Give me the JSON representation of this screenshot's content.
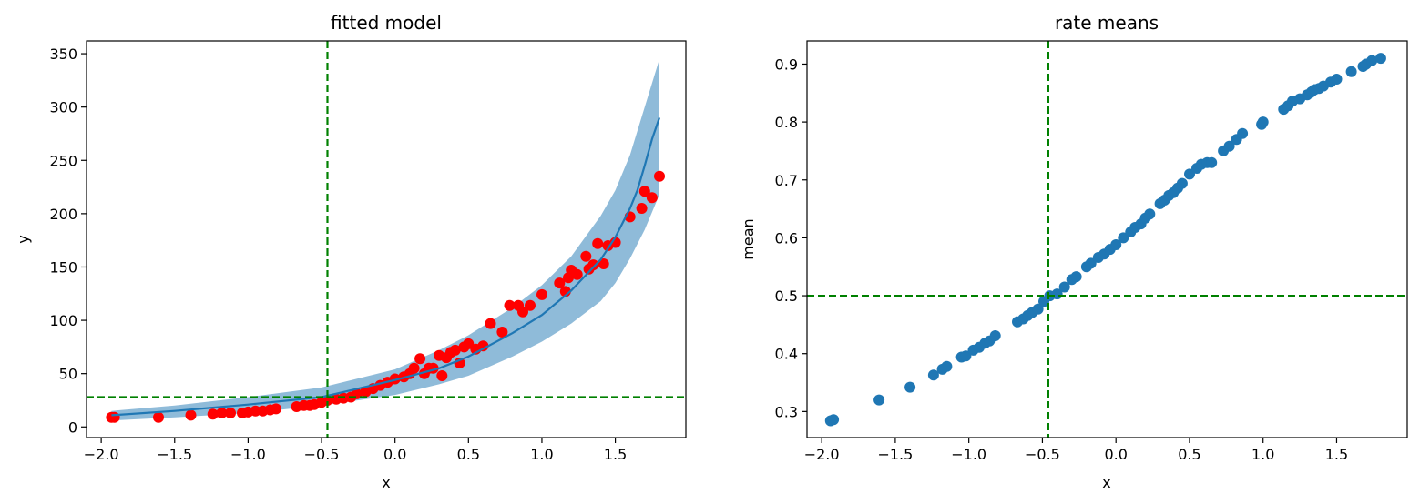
{
  "chart_data": [
    {
      "type": "scatter",
      "title": "fitted model",
      "xlabel": "x",
      "ylabel": "y",
      "xlim": [
        -2.1,
        1.98
      ],
      "ylim": [
        -10,
        362
      ],
      "xticks": [
        -2.0,
        -1.5,
        -1.0,
        -0.5,
        0.0,
        0.5,
        1.0,
        1.5
      ],
      "xtick_labels": [
        "−2.0",
        "−1.5",
        "−1.0",
        "−0.5",
        "0.0",
        "0.5",
        "1.0",
        "1.5"
      ],
      "yticks": [
        0,
        50,
        100,
        150,
        200,
        250,
        300,
        350
      ],
      "ytick_labels": [
        "0",
        "50",
        "100",
        "150",
        "200",
        "250",
        "300",
        "350"
      ],
      "grid": false,
      "observed": {
        "color": "#ff0000",
        "x": [
          -1.93,
          -1.91,
          -1.61,
          -1.39,
          -1.24,
          -1.18,
          -1.12,
          -1.04,
          -1.0,
          -0.95,
          -0.9,
          -0.85,
          -0.81,
          -0.67,
          -0.62,
          -0.58,
          -0.55,
          -0.5,
          -0.46,
          -0.4,
          -0.35,
          -0.3,
          -0.26,
          -0.2,
          -0.15,
          -0.1,
          -0.05,
          0.0,
          0.06,
          0.1,
          0.13,
          0.17,
          0.2,
          0.23,
          0.26,
          0.3,
          0.32,
          0.35,
          0.38,
          0.41,
          0.44,
          0.47,
          0.5,
          0.55,
          0.6,
          0.65,
          0.73,
          0.78,
          0.84,
          0.87,
          0.92,
          1.0,
          1.12,
          1.16,
          1.18,
          1.2,
          1.24,
          1.3,
          1.32,
          1.35,
          1.38,
          1.42,
          1.45,
          1.5,
          1.6,
          1.68,
          1.7,
          1.75,
          1.8
        ],
        "y": [
          9,
          9,
          9,
          11,
          12,
          13,
          13,
          13,
          14,
          15,
          15,
          16,
          17,
          19,
          20,
          20,
          21,
          23,
          25,
          26,
          27,
          28,
          31,
          33,
          36,
          39,
          42,
          45,
          47,
          50,
          55,
          64,
          50,
          55,
          55,
          67,
          48,
          65,
          70,
          72,
          60,
          75,
          78,
          73,
          76,
          97,
          89,
          114,
          114,
          108,
          114,
          124,
          135,
          127,
          140,
          147,
          143,
          160,
          148,
          152,
          172,
          153,
          170,
          173,
          197,
          205,
          221,
          215,
          235
        ]
      },
      "mean_line": {
        "color": "#1f77b4",
        "x": [
          -1.93,
          -1.5,
          -1.0,
          -0.5,
          0.0,
          0.3,
          0.5,
          0.8,
          1.0,
          1.2,
          1.4,
          1.5,
          1.6,
          1.65,
          1.7,
          1.75,
          1.8
        ],
        "y": [
          11,
          15,
          21,
          28,
          44,
          55,
          66,
          88,
          105,
          128,
          157,
          178,
          205,
          222,
          245,
          270,
          290
        ]
      },
      "band": {
        "color": "#1f77b4",
        "opacity": 0.5,
        "x": [
          -1.93,
          -1.5,
          -1.0,
          -0.5,
          0.0,
          0.3,
          0.5,
          0.8,
          1.0,
          1.2,
          1.4,
          1.5,
          1.6,
          1.7,
          1.8
        ],
        "lower": [
          6,
          9,
          13,
          20,
          30,
          40,
          48,
          66,
          80,
          97,
          118,
          135,
          158,
          185,
          218
        ],
        "upper": [
          15,
          20,
          28,
          37,
          54,
          72,
          86,
          112,
          133,
          160,
          198,
          222,
          255,
          300,
          345
        ]
      },
      "vline": {
        "x": -0.46,
        "color": "#008000"
      },
      "hline": {
        "y": 28,
        "color": "#008000"
      }
    },
    {
      "type": "scatter",
      "title": "rate means",
      "xlabel": "x",
      "ylabel": "mean",
      "xlim": [
        -2.1,
        1.98
      ],
      "ylim": [
        0.255,
        0.94
      ],
      "xticks": [
        -2.0,
        -1.5,
        -1.0,
        -0.5,
        0.0,
        0.5,
        1.0,
        1.5
      ],
      "xtick_labels": [
        "−2.0",
        "−1.5",
        "−1.0",
        "−0.5",
        "0.0",
        "0.5",
        "1.0",
        "1.5"
      ],
      "yticks": [
        0.3,
        0.4,
        0.5,
        0.6,
        0.7,
        0.8,
        0.9
      ],
      "ytick_labels": [
        "0.3",
        "0.4",
        "0.5",
        "0.6",
        "0.7",
        "0.8",
        "0.9"
      ],
      "grid": false,
      "points": {
        "color": "#1f77b4",
        "x": [
          -1.94,
          -1.92,
          -1.61,
          -1.4,
          -1.24,
          -1.18,
          -1.15,
          -1.05,
          -1.02,
          -0.97,
          -0.93,
          -0.89,
          -0.86,
          -0.82,
          -0.67,
          -0.63,
          -0.6,
          -0.57,
          -0.53,
          -0.49,
          -0.45,
          -0.4,
          -0.35,
          -0.3,
          -0.27,
          -0.2,
          -0.17,
          -0.12,
          -0.08,
          -0.04,
          0.0,
          0.05,
          0.1,
          0.13,
          0.17,
          0.2,
          0.23,
          0.3,
          0.33,
          0.36,
          0.39,
          0.42,
          0.45,
          0.5,
          0.55,
          0.58,
          0.62,
          0.65,
          0.73,
          0.77,
          0.82,
          0.86,
          0.99,
          1.0,
          1.14,
          1.17,
          1.2,
          1.25,
          1.3,
          1.33,
          1.35,
          1.38,
          1.41,
          1.46,
          1.5,
          1.6,
          1.68,
          1.7,
          1.74,
          1.8
        ],
        "y": [
          0.284,
          0.286,
          0.32,
          0.342,
          0.363,
          0.373,
          0.378,
          0.394,
          0.396,
          0.406,
          0.411,
          0.418,
          0.422,
          0.431,
          0.455,
          0.46,
          0.466,
          0.471,
          0.477,
          0.49,
          0.5,
          0.503,
          0.515,
          0.528,
          0.533,
          0.55,
          0.556,
          0.566,
          0.572,
          0.58,
          0.588,
          0.6,
          0.61,
          0.618,
          0.624,
          0.634,
          0.641,
          0.659,
          0.665,
          0.673,
          0.678,
          0.686,
          0.694,
          0.71,
          0.72,
          0.727,
          0.73,
          0.73,
          0.75,
          0.758,
          0.77,
          0.78,
          0.796,
          0.8,
          0.822,
          0.828,
          0.836,
          0.84,
          0.847,
          0.852,
          0.856,
          0.858,
          0.862,
          0.869,
          0.874,
          0.887,
          0.896,
          0.9,
          0.906,
          0.91
        ]
      },
      "vline": {
        "x": -0.46,
        "color": "#008000"
      },
      "hline": {
        "y": 0.5,
        "color": "#008000"
      }
    }
  ]
}
